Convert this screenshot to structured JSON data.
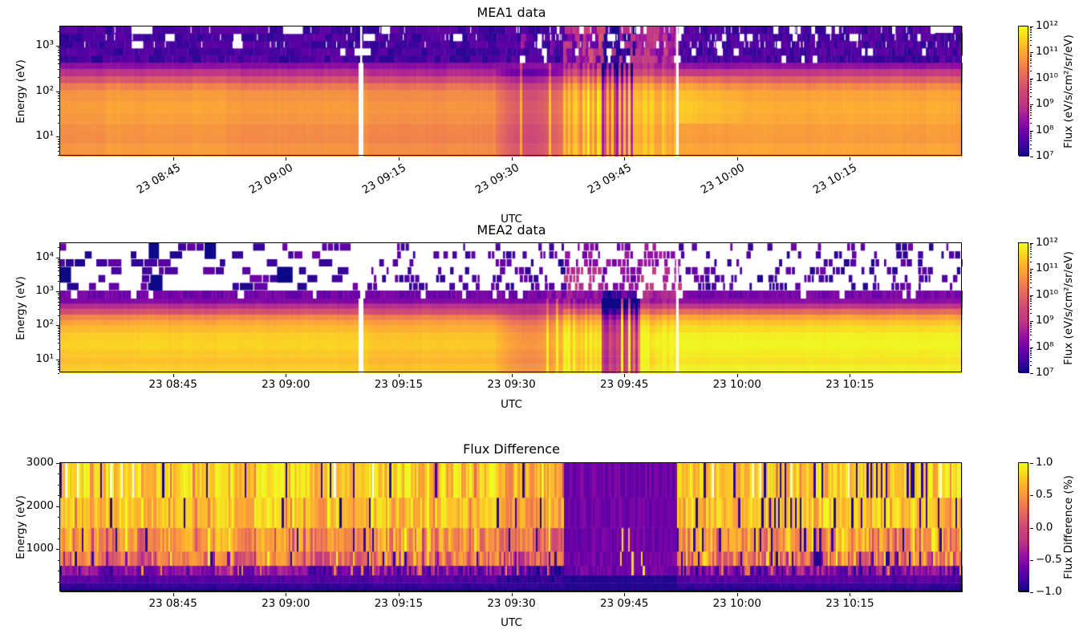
{
  "figure": {
    "background": "#ffffff",
    "text_color": "#000000",
    "colormap": "plasma"
  },
  "panels": [
    {
      "id": "mea1",
      "title": "MEA1 data",
      "xlabel": "UTC",
      "ylabel": "Energy (eV)",
      "x_tick_labels": [
        "23 08:45",
        "23 09:00",
        "23 09:15",
        "23 09:30",
        "23 09:45",
        "23 10:00",
        "23 10:15"
      ],
      "y_tick_labels": [
        {
          "value": 10,
          "label": "10¹"
        },
        {
          "value": 100,
          "label": "10²"
        },
        {
          "value": 1000,
          "label": "10³"
        }
      ],
      "colorbar": {
        "label": "Flux (eV/s/cm²/sr/eV)",
        "tick_labels": [
          {
            "value": 10000000.0,
            "label": "10⁷"
          },
          {
            "value": 100000000.0,
            "label": "10⁸"
          },
          {
            "value": 1000000000.0,
            "label": "10⁹"
          },
          {
            "value": 10000000000.0,
            "label": "10¹⁰"
          },
          {
            "value": 100000000000.0,
            "label": "10¹¹"
          },
          {
            "value": 1000000000000.0,
            "label": "10¹²"
          }
        ]
      }
    },
    {
      "id": "mea2",
      "title": "MEA2 data",
      "xlabel": "UTC",
      "ylabel": "Energy (eV)",
      "x_tick_labels": [
        "23 08:45",
        "23 09:00",
        "23 09:15",
        "23 09:30",
        "23 09:45",
        "23 10:00",
        "23 10:15"
      ],
      "y_tick_labels": [
        {
          "value": 10,
          "label": "10¹"
        },
        {
          "value": 100,
          "label": "10²"
        },
        {
          "value": 1000,
          "label": "10³"
        },
        {
          "value": 10000,
          "label": "10⁴"
        }
      ],
      "colorbar": {
        "label": "Flux (eV/s/cm²/sr/eV)",
        "tick_labels": [
          {
            "value": 10000000.0,
            "label": "10⁷"
          },
          {
            "value": 100000000.0,
            "label": "10⁸"
          },
          {
            "value": 1000000000.0,
            "label": "10⁹"
          },
          {
            "value": 10000000000.0,
            "label": "10¹⁰"
          },
          {
            "value": 100000000000.0,
            "label": "10¹¹"
          },
          {
            "value": 1000000000000.0,
            "label": "10¹²"
          }
        ]
      }
    },
    {
      "id": "fluxdiff",
      "title": "Flux Difference",
      "xlabel": "UTC",
      "ylabel": "Energy (eV)",
      "x_tick_labels": [
        "23 08:45",
        "23 09:00",
        "23 09:15",
        "23 09:30",
        "23 09:45",
        "23 10:00",
        "23 10:15"
      ],
      "y_tick_labels": [
        {
          "value": 1000,
          "label": "1000"
        },
        {
          "value": 2000,
          "label": "2000"
        },
        {
          "value": 3000,
          "label": "3000"
        }
      ],
      "colorbar": {
        "label": "Flux Difference (%)",
        "tick_labels": [
          {
            "value": 1,
            "label": "1.0"
          },
          {
            "value": 0.5,
            "label": "0.5"
          },
          {
            "value": 0,
            "label": "0.0"
          },
          {
            "value": -0.5,
            "label": "−0.5"
          },
          {
            "value": -1,
            "label": "−1.0"
          }
        ]
      }
    }
  ],
  "chart_data": [
    {
      "type": "heatmap",
      "id": "mea1",
      "title": "MEA1 data",
      "x_time_range": [
        "23 08:30",
        "23 10:30"
      ],
      "x_tick_times": [
        "08:45",
        "09:00",
        "09:15",
        "09:30",
        "09:45",
        "10:00",
        "10:15"
      ],
      "y_scale": "log",
      "y_range_ev": [
        3.7,
        2600
      ],
      "flux_scale": "log",
      "flux_range": [
        10000000.0,
        1000000000000.0
      ],
      "colormap": "plasma",
      "spectrum_channels": [
        {
          "e0": 3.7,
          "e1": 7,
          "log_flux": 10.75
        },
        {
          "e0": 7,
          "e1": 12,
          "log_flux": 10.6
        },
        {
          "e0": 12,
          "e1": 20,
          "log_flux": 10.65
        },
        {
          "e0": 20,
          "e1": 34,
          "log_flux": 10.78
        },
        {
          "e0": 34,
          "e1": 60,
          "log_flux": 10.85
        },
        {
          "e0": 60,
          "e1": 105,
          "log_flux": 10.72
        },
        {
          "e0": 105,
          "e1": 150,
          "log_flux": 10.35
        },
        {
          "e0": 150,
          "e1": 215,
          "log_flux": 9.7
        },
        {
          "e0": 215,
          "e1": 310,
          "log_flux": 8.9
        },
        {
          "e0": 310,
          "e1": 420,
          "log_flux": 8.3
        }
      ],
      "noise_band": {
        "e0": 420,
        "e1": 2600,
        "log_flux_range": [
          7.2,
          8.0
        ],
        "missing_fraction": 0.04
      },
      "events": [
        {
          "time": "09:10",
          "type": "data_gap"
        },
        {
          "t0": "08:36",
          "t1": "08:52",
          "type": "mild_enhancement",
          "dlog": 0.12
        },
        {
          "t0": "09:11",
          "t1": "09:28",
          "type": "mild_depression",
          "dlog": -0.12
        },
        {
          "t0": "09:28",
          "t1": "09:37",
          "type": "flux_depression",
          "dlog": -1.1
        },
        {
          "t0": "09:37",
          "t1": "09:42",
          "type": "enhanced_columns",
          "dlog_range": [
            -0.3,
            1.1
          ]
        },
        {
          "t0": "09:42",
          "t1": "09:47",
          "type": "deep_dropouts",
          "dlog_range": [
            -2.2,
            -0.8
          ]
        },
        {
          "t0": "09:47",
          "t1": "09:52",
          "type": "enhanced_columns",
          "dlog_range": [
            0.2,
            0.9
          ]
        },
        {
          "time": "09:52",
          "type": "data_gap"
        },
        {
          "t0": "09:52",
          "t1": "10:30",
          "type": "recovery",
          "dlog": 0.18
        },
        {
          "t0": "09:52",
          "t1": "10:01",
          "type": "bright_patch",
          "dlog": 0.4
        }
      ]
    },
    {
      "type": "heatmap",
      "id": "mea2",
      "title": "MEA2 data",
      "x_time_range": [
        "23 08:30",
        "23 10:30"
      ],
      "x_tick_times": [
        "08:45",
        "09:00",
        "09:15",
        "09:30",
        "09:45",
        "10:00",
        "10:15"
      ],
      "y_scale": "log",
      "y_range_ev": [
        3.9,
        26000
      ],
      "flux_scale": "log",
      "flux_range": [
        10000000.0,
        1000000000000.0
      ],
      "colormap": "plasma",
      "spectrum_channels": [
        {
          "e0": 3.9,
          "e1": 7,
          "log_flux": 11.5
        },
        {
          "e0": 7,
          "e1": 12,
          "log_flux": 11.35
        },
        {
          "e0": 12,
          "e1": 20,
          "log_flux": 11.45
        },
        {
          "e0": 20,
          "e1": 35,
          "log_flux": 11.58
        },
        {
          "e0": 35,
          "e1": 62,
          "log_flux": 11.5
        },
        {
          "e0": 62,
          "e1": 100,
          "log_flux": 11.28
        },
        {
          "e0": 100,
          "e1": 145,
          "log_flux": 11.0
        },
        {
          "e0": 145,
          "e1": 210,
          "log_flux": 10.55
        },
        {
          "e0": 210,
          "e1": 310,
          "log_flux": 9.7
        },
        {
          "e0": 310,
          "e1": 440,
          "log_flux": 8.9
        },
        {
          "e0": 440,
          "e1": 620,
          "log_flux": 8.2
        }
      ],
      "solid_band": {
        "e0": 620,
        "e1": 1050,
        "log_flux": 7.8,
        "missing_fraction": 0.1
      },
      "sparse_band": {
        "e0": 1050,
        "e1": 26000,
        "fill_fraction": 0.4,
        "log_flux_range": [
          7.1,
          8.0
        ]
      },
      "events": [
        {
          "time": "09:10",
          "type": "data_gap"
        },
        {
          "t0": "09:11",
          "t1": "09:28",
          "type": "mild_depression",
          "dlog": -0.15
        },
        {
          "t0": "09:28",
          "t1": "09:37",
          "type": "flux_depression",
          "dlog": -0.8
        },
        {
          "t0": "09:37",
          "t1": "09:42",
          "type": "enhanced_columns",
          "dlog_range": [
            -0.2,
            0.6
          ]
        },
        {
          "t0": "09:42",
          "t1": "09:47",
          "type": "deep_dropouts",
          "dlog_range": [
            -2.8,
            -1.0
          ]
        },
        {
          "t0": "09:47",
          "t1": "09:52",
          "type": "enhanced_columns",
          "dlog_range": [
            0.1,
            0.6
          ]
        },
        {
          "time": "09:52",
          "type": "data_gap"
        },
        {
          "t0": "09:52",
          "t1": "10:30",
          "type": "recovery",
          "dlog": 0.3
        }
      ]
    },
    {
      "type": "heatmap",
      "id": "fluxdiff",
      "title": "Flux Difference",
      "x_time_range": [
        "23 08:30",
        "23 10:30"
      ],
      "x_tick_times": [
        "08:45",
        "09:00",
        "09:15",
        "09:30",
        "09:45",
        "10:00",
        "10:15"
      ],
      "y_scale": "linear",
      "y_range_ev": [
        0,
        3000
      ],
      "value_range": [
        -1,
        1
      ],
      "colormap": "plasma",
      "rows": [
        {
          "e0": 0,
          "e1": 100,
          "value": -0.93,
          "noise": 0.04
        },
        {
          "e0": 100,
          "e1": 220,
          "value": -0.86,
          "noise": 0.06
        },
        {
          "e0": 220,
          "e1": 400,
          "value": -0.72,
          "noise": 0.12
        },
        {
          "e0": 400,
          "e1": 620,
          "value": -0.5,
          "noise": 0.45
        },
        {
          "e0": 620,
          "e1": 950,
          "value": 0.3,
          "noise": 0.55
        },
        {
          "e0": 950,
          "e1": 1500,
          "value": 0.5,
          "noise": 0.42
        },
        {
          "e0": 1500,
          "e1": 2200,
          "value": 0.72,
          "noise": 0.3
        },
        {
          "e0": 2200,
          "e1": 3000,
          "value": 0.8,
          "noise": 0.36
        }
      ],
      "events": [
        {
          "t0": "09:28",
          "t1": "09:37",
          "type": "pre_dropout_darkening"
        },
        {
          "t0": "09:37",
          "t1": "09:52",
          "type": "negative_block",
          "value": -0.75
        },
        {
          "t0": "09:44",
          "t1": "09:48",
          "type": "bright_streaks"
        },
        {
          "t0": "09:52",
          "t1": "10:30",
          "type": "post_gap_striping"
        }
      ]
    }
  ]
}
